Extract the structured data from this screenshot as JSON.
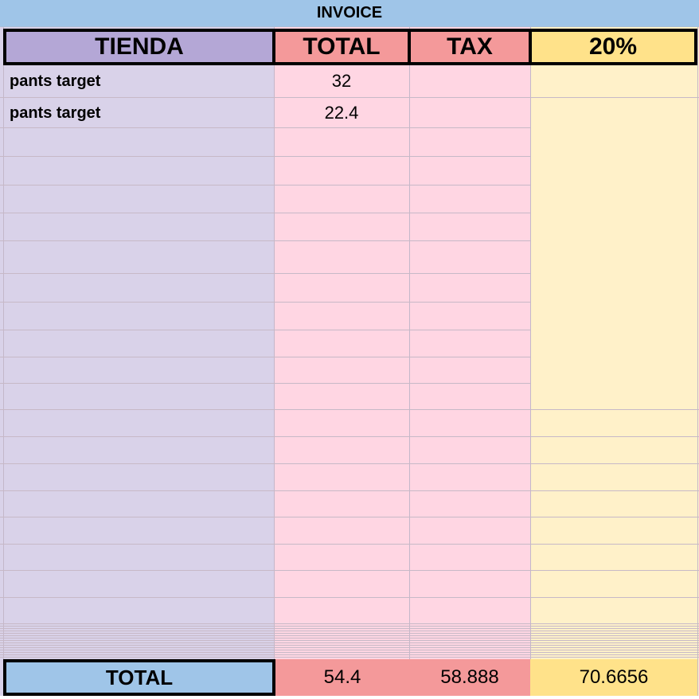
{
  "sheet": {
    "title": "INVOICE"
  },
  "columns": {
    "store": "TIENDA",
    "total": "TOTAL",
    "tax": "TAX",
    "pct": "20%"
  },
  "rows": [
    {
      "store": "pants target",
      "total": "32"
    },
    {
      "store": "pants target",
      "total": "22.4"
    }
  ],
  "footer": {
    "label": "TOTAL",
    "total": "54.4",
    "tax": "58.888",
    "pct": "70.6656"
  },
  "colors": {
    "title_bar": "#9fc5e8",
    "store_header": "#b4a7d6",
    "store_column": "#d9d2e9",
    "total_header": "#f4999a",
    "total_column": "#ffd6e3",
    "pct_header": "#ffe28a",
    "pct_column": "#fff1c9"
  }
}
